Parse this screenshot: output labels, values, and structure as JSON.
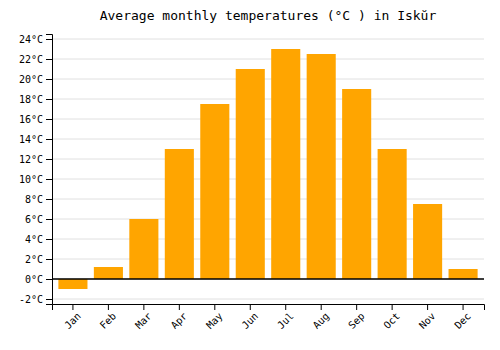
{
  "chart_data": {
    "type": "bar",
    "title": "Average monthly temperatures (°C ) in Iskŭr",
    "categories": [
      "Jan",
      "Feb",
      "Mar",
      "Apr",
      "May",
      "Jun",
      "Jul",
      "Aug",
      "Sep",
      "Oct",
      "Nov",
      "Dec"
    ],
    "values": [
      -1.0,
      1.2,
      6.0,
      13.0,
      17.5,
      21.0,
      23.0,
      22.5,
      19.0,
      13.0,
      7.5,
      1.0
    ],
    "color": "#FFA500",
    "ylim": [
      -2.5,
      24.5
    ],
    "yticks": [
      {
        "value": -2,
        "label": "-2°C"
      },
      {
        "value": 0,
        "label": "0°C"
      },
      {
        "value": 2,
        "label": "2°C"
      },
      {
        "value": 4,
        "label": "4°C"
      },
      {
        "value": 6,
        "label": "6°C"
      },
      {
        "value": 8,
        "label": "8°C"
      },
      {
        "value": 10,
        "label": "10°C"
      },
      {
        "value": 12,
        "label": "12°C"
      },
      {
        "value": 14,
        "label": "14°C"
      },
      {
        "value": 16,
        "label": "16°C"
      },
      {
        "value": 18,
        "label": "18°C"
      },
      {
        "value": 20,
        "label": "20°C"
      },
      {
        "value": 22,
        "label": "22°C"
      },
      {
        "value": 24,
        "label": "24°C"
      }
    ],
    "grid": true
  }
}
